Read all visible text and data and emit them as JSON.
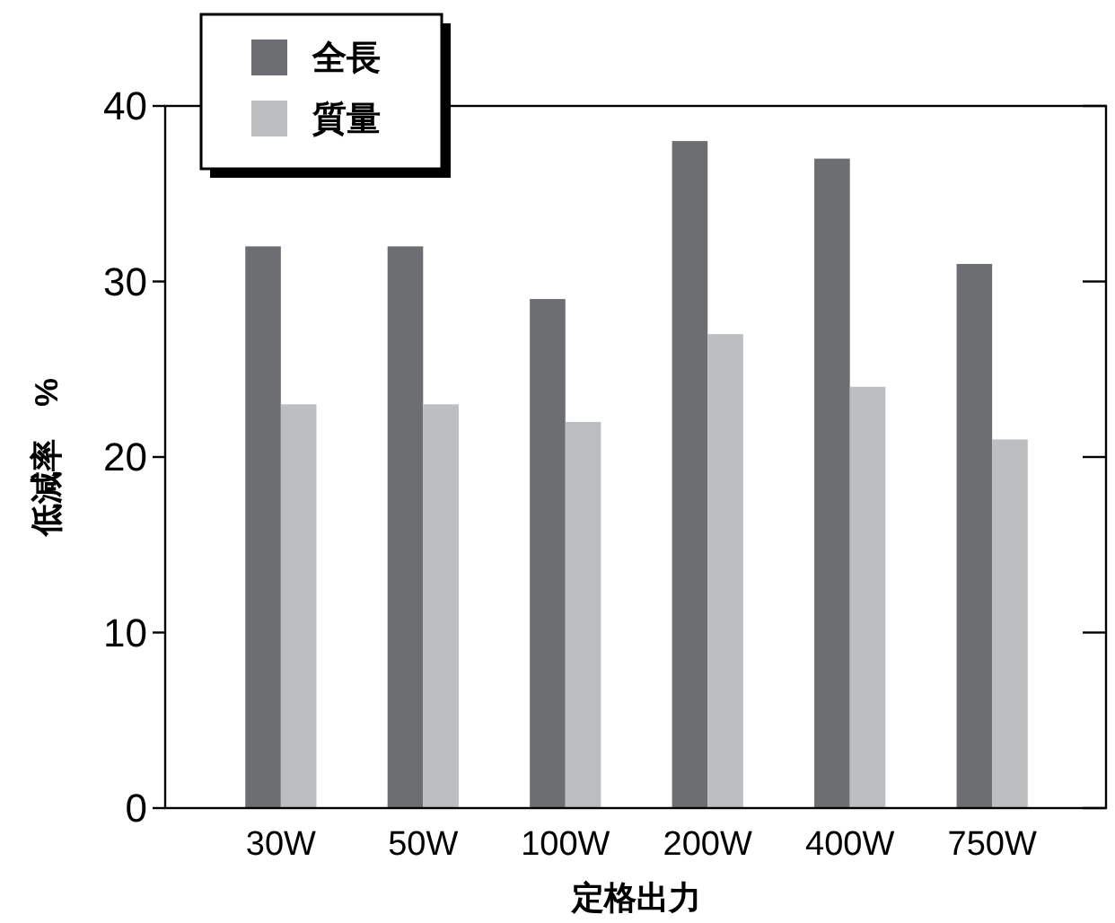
{
  "chart_data": {
    "type": "bar",
    "xlabel": "定格出力",
    "ylabel": "低減率　%",
    "categories": [
      "30W",
      "50W",
      "100W",
      "200W",
      "400W",
      "750W"
    ],
    "series": [
      {
        "name": "全長",
        "color": "#6d6e71",
        "values": [
          32,
          32,
          29,
          38,
          37,
          31
        ]
      },
      {
        "name": "質量",
        "color": "#bcbec0",
        "values": [
          23,
          23,
          22,
          27,
          24,
          21
        ]
      }
    ],
    "ylim": [
      0,
      40
    ],
    "yticks": [
      0,
      10,
      20,
      30,
      40
    ],
    "grid": false,
    "legend": "top left"
  }
}
